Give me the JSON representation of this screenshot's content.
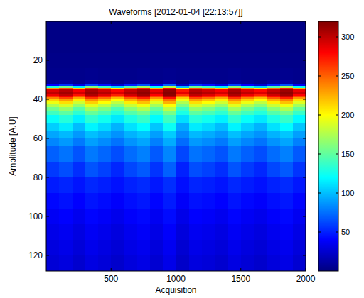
{
  "chart_data": {
    "type": "heatmap",
    "title": "Waveforms [2012-01-04 [22:13:57]]",
    "xlabel": "Acquisition",
    "ylabel": "Amplitude [A.U]",
    "xlim": [
      0,
      2000
    ],
    "xticks": [
      500,
      1000,
      1500,
      2000
    ],
    "ylim": [
      128,
      0
    ],
    "yticks": [
      20,
      40,
      60,
      80,
      100,
      120
    ],
    "x_bins": [
      0,
      100,
      200,
      300,
      400,
      500,
      600,
      700,
      800,
      900,
      1000,
      1100,
      1200,
      1300,
      1400,
      1500,
      1600,
      1700,
      1800,
      1900,
      2000
    ],
    "y_bins": [
      0,
      8,
      16,
      24,
      30,
      32,
      33,
      34,
      35,
      36,
      37,
      38,
      39,
      40,
      41,
      42,
      44,
      46,
      48,
      52,
      56,
      60,
      64,
      72,
      80,
      88,
      96,
      104,
      112,
      120,
      128
    ],
    "cells": [
      [
        2,
        2,
        2,
        2,
        2,
        2,
        2,
        2,
        2,
        2,
        2,
        2,
        2,
        2,
        2,
        2,
        2,
        2,
        2,
        2
      ],
      [
        2,
        2,
        2,
        2,
        2,
        2,
        2,
        2,
        2,
        2,
        2,
        2,
        2,
        2,
        2,
        2,
        2,
        2,
        2,
        2
      ],
      [
        3,
        3,
        3,
        3,
        3,
        3,
        3,
        3,
        3,
        3,
        3,
        3,
        3,
        3,
        3,
        3,
        3,
        3,
        3,
        3
      ],
      [
        4,
        4,
        4,
        5,
        4,
        4,
        4,
        5,
        4,
        5,
        4,
        4,
        4,
        4,
        5,
        4,
        4,
        4,
        5,
        4
      ],
      [
        8,
        11,
        6,
        12,
        9,
        5,
        10,
        13,
        7,
        14,
        4,
        11,
        9,
        6,
        12,
        8,
        5,
        10,
        13,
        7
      ],
      [
        40,
        55,
        30,
        60,
        45,
        25,
        50,
        65,
        35,
        70,
        20,
        55,
        45,
        30,
        60,
        40,
        25,
        50,
        65,
        35
      ],
      [
        130,
        154,
        114,
        162,
        138,
        106,
        146,
        170,
        122,
        178,
        98,
        154,
        138,
        114,
        162,
        130,
        106,
        146,
        170,
        122
      ],
      [
        230,
        254,
        214,
        262,
        238,
        206,
        246,
        270,
        222,
        278,
        198,
        254,
        238,
        214,
        262,
        230,
        206,
        246,
        270,
        222
      ],
      [
        290,
        302,
        282,
        306,
        294,
        278,
        298,
        310,
        286,
        314,
        274,
        302,
        294,
        282,
        306,
        290,
        278,
        298,
        310,
        286
      ],
      [
        300,
        309,
        294,
        312,
        303,
        291,
        306,
        315,
        297,
        318,
        288,
        309,
        303,
        294,
        312,
        300,
        291,
        306,
        315,
        297
      ],
      [
        285,
        300,
        275,
        305,
        290,
        270,
        295,
        310,
        280,
        315,
        265,
        300,
        290,
        275,
        305,
        285,
        270,
        295,
        310,
        280
      ],
      [
        265,
        283,
        253,
        289,
        271,
        247,
        277,
        295,
        259,
        301,
        241,
        283,
        271,
        253,
        289,
        265,
        247,
        277,
        295,
        259
      ],
      [
        240,
        258,
        228,
        264,
        246,
        222,
        252,
        270,
        234,
        276,
        216,
        258,
        246,
        228,
        264,
        240,
        222,
        252,
        270,
        234
      ],
      [
        215,
        230,
        205,
        235,
        220,
        200,
        225,
        240,
        210,
        245,
        195,
        230,
        220,
        205,
        235,
        215,
        200,
        225,
        240,
        210
      ],
      [
        195,
        210,
        185,
        215,
        200,
        180,
        205,
        220,
        190,
        225,
        175,
        210,
        200,
        185,
        215,
        195,
        180,
        205,
        220,
        190
      ],
      [
        175,
        187,
        167,
        191,
        179,
        163,
        183,
        195,
        171,
        199,
        159,
        187,
        179,
        167,
        191,
        175,
        163,
        183,
        195,
        171
      ],
      [
        155,
        167,
        147,
        171,
        159,
        143,
        163,
        175,
        151,
        179,
        139,
        167,
        159,
        147,
        171,
        155,
        143,
        163,
        175,
        151
      ],
      [
        140,
        149,
        134,
        152,
        143,
        131,
        146,
        155,
        137,
        158,
        128,
        149,
        143,
        134,
        152,
        140,
        131,
        146,
        155,
        137
      ],
      [
        122,
        131,
        116,
        134,
        125,
        113,
        128,
        137,
        119,
        140,
        110,
        131,
        125,
        116,
        134,
        122,
        113,
        128,
        137,
        119
      ],
      [
        105,
        114,
        99,
        117,
        108,
        96,
        111,
        120,
        102,
        123,
        93,
        114,
        108,
        99,
        117,
        105,
        96,
        111,
        120,
        102
      ],
      [
        92,
        98,
        88,
        100,
        94,
        86,
        96,
        102,
        90,
        104,
        84,
        98,
        94,
        88,
        100,
        92,
        86,
        96,
        102,
        90
      ],
      [
        82,
        88,
        78,
        90,
        84,
        76,
        86,
        92,
        80,
        94,
        74,
        88,
        84,
        78,
        90,
        82,
        76,
        86,
        92,
        80
      ],
      [
        70,
        76,
        66,
        78,
        72,
        64,
        74,
        80,
        68,
        82,
        62,
        76,
        72,
        66,
        78,
        70,
        64,
        74,
        80,
        68
      ],
      [
        58,
        64,
        54,
        66,
        60,
        52,
        62,
        68,
        56,
        70,
        50,
        64,
        60,
        54,
        66,
        58,
        52,
        62,
        68,
        56
      ],
      [
        48,
        51,
        46,
        52,
        49,
        45,
        50,
        53,
        47,
        54,
        44,
        51,
        49,
        46,
        52,
        48,
        45,
        50,
        53,
        47
      ],
      [
        42,
        45,
        40,
        46,
        43,
        39,
        44,
        47,
        41,
        48,
        38,
        45,
        43,
        40,
        46,
        42,
        39,
        44,
        47,
        41
      ],
      [
        37,
        40,
        35,
        41,
        38,
        34,
        39,
        42,
        36,
        43,
        33,
        40,
        38,
        35,
        41,
        37,
        34,
        39,
        42,
        36
      ],
      [
        33,
        36,
        31,
        37,
        34,
        30,
        35,
        38,
        32,
        39,
        29,
        36,
        34,
        31,
        37,
        33,
        30,
        35,
        38,
        32
      ],
      [
        30,
        33,
        28,
        34,
        31,
        27,
        32,
        35,
        29,
        36,
        26,
        33,
        31,
        28,
        34,
        30,
        27,
        32,
        35,
        29
      ],
      [
        27,
        30,
        25,
        31,
        28,
        24,
        29,
        32,
        26,
        33,
        23,
        30,
        28,
        25,
        31,
        27,
        24,
        29,
        32,
        26
      ]
    ],
    "colorbar": {
      "lim": [
        0,
        320
      ],
      "ticks": [
        50,
        100,
        150,
        200,
        250,
        300
      ]
    }
  }
}
